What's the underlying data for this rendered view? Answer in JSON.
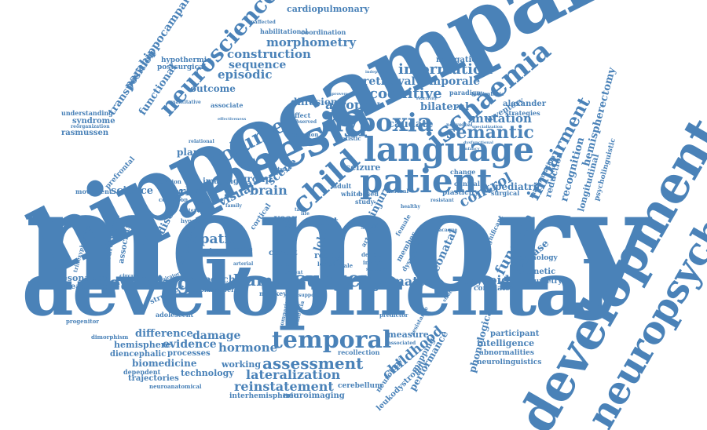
{
  "accent_color": "#4a82b8",
  "background_color": "#ffffff",
  "words": {
    "memory": "memory",
    "developmental": "developmental",
    "hippocampal": "hippocampal",
    "amnesia": "amnesia",
    "development": "development",
    "neuropsychological": "neuropsychological",
    "patient": "patient",
    "language": "language",
    "hypoxia": "hypoxia",
    "ischaemia": "ischaemia",
    "child": "child",
    "temporal": "temporal",
    "surgery": "surgery",
    "human": "human",
    "learning": "learning",
    "assessment": "assessment",
    "reinstatement": "reinstatement",
    "lateralization": "lateralization",
    "neuroscience": "neuroscience",
    "volume": "volume",
    "semantic": "semantic",
    "impairment": "impairment",
    "information": "information",
    "cognitive": "cognitive",
    "retrieval": "retrieval",
    "temporale": "temporale",
    "episodic": "episodic",
    "construction": "construction",
    "morphometry": "morphometry",
    "sequence": "sequence",
    "cardiopulmonary": "cardiopulmonary",
    "habilitational": "habilitational",
    "coordination": "coordination",
    "parahippocampal": "parahippocampal",
    "transposition": "transposition",
    "functional": "functional",
    "outcome": "outcome",
    "hypothermic": "hypothermic",
    "postsurgical": "postsurgical",
    "understanding": "understanding",
    "syndrome": "syndrome",
    "rasmussen": "rasmussen",
    "atrophy": "atrophy",
    "bilateral": "bilateral",
    "mutation": "mutation",
    "caudate": "caudate",
    "diffusion": "diffusion",
    "navigation": "navigation",
    "inventory": "inventory",
    "alexander": "alexander",
    "strategies": "strategies",
    "hemispherectomy": "hemispherectomy",
    "recognition": "recognition",
    "longitudinal": "longitudinal",
    "psycholinguistic": "psycholinguistic",
    "reduction": "reduction",
    "control": "control",
    "pediatric": "pediatric",
    "plasticity": "plasticity",
    "function": "function",
    "disease": "disease",
    "pathology": "pathology",
    "magnetic": "magnetic",
    "volumetry": "volumetry",
    "thyroid": "thyroid",
    "correlated": "correlated",
    "brain": "brain",
    "scene": "scene",
    "group": "group",
    "visual": "visual",
    "verbal": "verbal",
    "science": "science",
    "imaging": "imaging",
    "planum": "planum",
    "spatial": "spatial",
    "disorder": "disorder",
    "primate": "primate",
    "speech": "speech",
    "resonance": "resonance",
    "treatment": "treatment",
    "association": "association",
    "neurosurgery": "neurosurgery",
    "trihexyphenidyl": "trihexyphenidyl",
    "prefrontal": "prefrontal",
    "movement": "movement",
    "seizure": "seizure",
    "test": "test",
    "lobe": "lobe",
    "injury": "injury",
    "neonatal": "neonatal",
    "matter": "matter",
    "year": "year",
    "cohort": "cohort",
    "result": "result",
    "measure": "measure",
    "childhood": "childhood",
    "performance": "performance",
    "phonological": "phonological",
    "intelligence": "intelligence",
    "participant": "participant",
    "abnormalities": "abnormalities",
    "neurolinguistics": "neurolinguistics",
    "difference": "difference",
    "hemisphere": "hemisphere",
    "evidence": "evidence",
    "damage": "damage",
    "hormone": "hormone",
    "diencephalic": "diencephalic",
    "processes": "processes",
    "biomedicine": "biomedicine",
    "working": "working",
    "technology": "technology",
    "dependent": "dependent",
    "trajectories": "trajectories",
    "neuroanatomical": "neuroanatomical",
    "interhemispheric": "interhemispheric",
    "neuroimaging": "neuroimaging",
    "cerebellum": "cerebellum",
    "recollection": "recollection",
    "leukodystrophy": "leukodystrophy",
    "neurology": "neurology",
    "mapping": "mapping",
    "adolescent": "adolescent",
    "dimorphism": "dimorphism",
    "progenitor": "progenitor",
    "structure": "structure",
    "neoplasm": "neoplasm",
    "puberty": "puberty",
    "monkey": "monkey",
    "circulatory": "circulatory",
    "white": "white",
    "adult": "adult",
    "based": "based",
    "study": "study",
    "normal": "normal",
    "healthy": "healthy",
    "female": "female",
    "great": "great",
    "arteries": "arteries",
    "member": "member",
    "dyspraxia": "dyspraxia",
    "significant": "significant",
    "deficit": "deficit",
    "insight": "insight",
    "studies": "studies",
    "lesion": "lesion",
    "congenital": "congenital",
    "bodies": "bodies",
    "cortical": "cortical",
    "hypoxic": "hypoxic",
    "cognition": "cognition",
    "operation": "operation",
    "associate": "associate",
    "quantitative": "quantitative",
    "reorganization": "reorganization",
    "unaffected": "unaffected",
    "effect": "effect",
    "resection": "resection",
    "statistic": "statistic",
    "clinical": "clinical",
    "nonverbal": "nonverbal",
    "specialization": "specialization",
    "paradigm": "paradigm",
    "hemispheric": "hemispheric",
    "surgical": "surgical",
    "malformation": "malformation",
    "change": "change",
    "observed": "observed",
    "relational": "relational",
    "virtual": "virtual",
    "family": "family",
    "context": "context",
    "tool": "tool",
    "face": "face",
    "vowel": "vowel",
    "male": "male",
    "resistance": "resistance",
    "strategy": "strategy",
    "predictor": "predictor",
    "gender": "gender",
    "present": "present",
    "arterial": "arterial",
    "support": "support",
    "associated": "associated",
    "comparison": "comparison",
    "dementia": "dementia",
    "task": "task",
    "life": "life",
    "resistant": "resistant",
    "respiratory": "respiratory",
    "macaque": "macaque",
    "infancy": "infancy",
    "dysfunctional": "dysfunctional",
    "independent": "independent",
    "improvement": "improvement",
    "reactivity": "reactivity",
    "sentence": "sentence",
    "effectiveness": "effectiveness"
  }
}
